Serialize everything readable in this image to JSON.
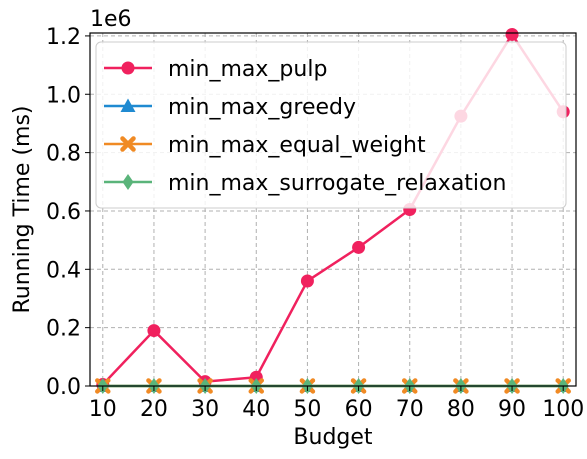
{
  "chart_data": {
    "type": "line",
    "xlabel": "Budget",
    "ylabel": "Running Time (ms)",
    "y_offset_label": "1e6",
    "x": [
      10,
      20,
      30,
      40,
      50,
      60,
      70,
      80,
      90,
      100
    ],
    "x_tick_labels": [
      "10",
      "20",
      "30",
      "40",
      "50",
      "60",
      "70",
      "80",
      "90",
      "100"
    ],
    "ylim": [
      0,
      1210000
    ],
    "y_ticks": [
      0,
      200000,
      400000,
      600000,
      800000,
      1000000,
      1200000
    ],
    "y_tick_labels": [
      "0.0",
      "0.2",
      "0.4",
      "0.6",
      "0.8",
      "1.0",
      "1.2"
    ],
    "grid": true,
    "legend_position": "upper-left",
    "series": [
      {
        "name": "min_max_pulp",
        "color": "#f0215e",
        "marker": "circle",
        "values": [
          5000,
          190000,
          15000,
          30000,
          360000,
          475000,
          605000,
          925000,
          1205000,
          940000
        ]
      },
      {
        "name": "min_max_greedy",
        "color": "#1f8ad1",
        "marker": "triangle",
        "values": [
          100,
          100,
          100,
          100,
          100,
          100,
          100,
          100,
          100,
          100
        ]
      },
      {
        "name": "min_max_equal_weight",
        "color": "#f08a24",
        "marker": "x",
        "values": [
          100,
          100,
          100,
          100,
          100,
          100,
          100,
          100,
          100,
          100
        ]
      },
      {
        "name": "min_max_surrogate_relaxation",
        "color": "#5ab47a",
        "marker": "diamond",
        "values": [
          100,
          100,
          100,
          100,
          100,
          100,
          100,
          100,
          100,
          100
        ]
      }
    ]
  }
}
